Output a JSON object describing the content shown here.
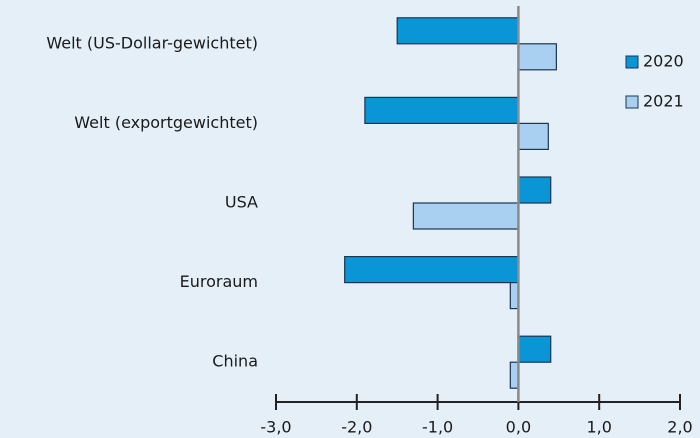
{
  "chart_data": {
    "type": "barh",
    "categories": [
      "Welt (US-Dollar-gewichtet)",
      "Welt (exportgewichtet)",
      "USA",
      "Euroraum",
      "China"
    ],
    "series": [
      {
        "name": "2020",
        "color": "#0a96d6",
        "values": [
          -1.5,
          -1.9,
          0.4,
          -2.15,
          0.4
        ]
      },
      {
        "name": "2021",
        "color": "#a9d0f1",
        "values": [
          0.47,
          0.37,
          -1.3,
          -0.1,
          -0.1
        ]
      }
    ],
    "xlim": [
      -3,
      2
    ],
    "xticks": [
      {
        "value": -3,
        "label": "-3,0"
      },
      {
        "value": -2,
        "label": "-2,0"
      },
      {
        "value": -1,
        "label": "-1,0"
      },
      {
        "value": 0,
        "label": "0,0"
      },
      {
        "value": 1,
        "label": "1,0"
      },
      {
        "value": 2,
        "label": "2,0"
      }
    ]
  }
}
